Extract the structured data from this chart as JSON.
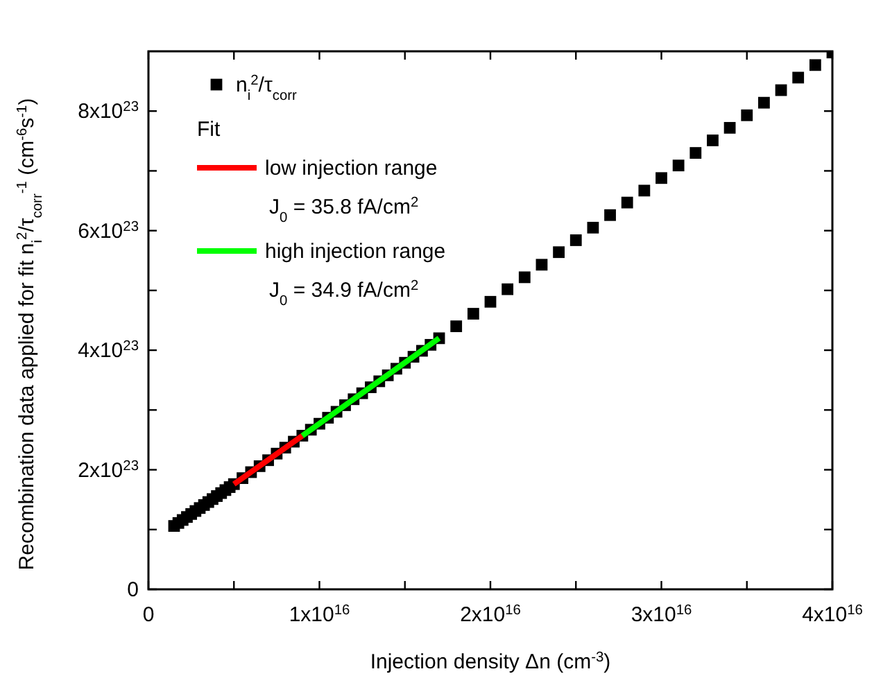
{
  "chart_data": {
    "type": "scatter",
    "xlabel": "Injection density Δn (cm$^{-3}$)",
    "ylabel": "Recombination data applied for fit n$_{i}$$^{2}$/τ$_{corr}$$^{-1}$ (cm$^{-6}$s$^{-1}$)",
    "xlim": [
      0,
      4e+16
    ],
    "ylim": [
      0,
      9e+23
    ],
    "xticks": [
      0,
      {
        "value": 5000000000000000.0,
        "label": null
      },
      {
        "value": 1e+16,
        "label": "1x10$^{16}$"
      },
      {
        "value": 1.5e+16,
        "label": null
      },
      {
        "value": 2e+16,
        "label": "2x10$^{16}$"
      },
      {
        "value": 2.5e+16,
        "label": null
      },
      {
        "value": 3e+16,
        "label": "3x10$^{16}$"
      },
      {
        "value": 3.5e+16,
        "label": null
      },
      {
        "value": 4e+16,
        "label": "4x10$^{16}$"
      }
    ],
    "yticks": [
      0,
      {
        "value": 1e+23,
        "label": null
      },
      {
        "value": 2e+23,
        "label": "2x10$^{23}$"
      },
      {
        "value": 3e+23,
        "label": null
      },
      {
        "value": 4e+23,
        "label": "4x10$^{23}$"
      },
      {
        "value": 5e+23,
        "label": null
      },
      {
        "value": 6e+23,
        "label": "6x10$^{23}$"
      },
      {
        "value": 7e+23,
        "label": null
      },
      {
        "value": 8e+23,
        "label": "8x10$^{23}$"
      }
    ],
    "grid": false,
    "legend": "top left",
    "legend_title": "Fit",
    "marker": "square",
    "annotations": [
      "J$_{0}$ = 35.8 fA/cm$^{2}$",
      "J$_{0}$ = 34.9 fA/cm$^{2}$"
    ],
    "series": [
      {
        "name": "n$_{i}$$^{2}$/τ$_{corr}$",
        "color": "#000000",
        "x": [
          1500000000000000.0,
          1750000000000000.0,
          2000000000000000.0,
          2250000000000000.0,
          2500000000000000.0,
          2750000000000000.0,
          3000000000000000.0,
          3250000000000000.0,
          3500000000000000.0,
          3750000000000000.0,
          4000000000000000.0,
          4250000000000000.0,
          4500000000000000.0,
          4750000000000000.0,
          5000000000000000.0,
          5500000000000000.0,
          6000000000000000.0,
          6500000000000000.0,
          7000000000000000.0,
          7500000000000000.0,
          8000000000000000.0,
          8500000000000000.0,
          9000000000000000.0,
          9500000000000000.0,
          1e+16,
          1.05e+16,
          1.1e+16,
          1.15e+16,
          1.2e+16,
          1.25e+16,
          1.3e+16,
          1.35e+16,
          1.4e+16,
          1.45e+16,
          1.5e+16,
          1.55e+16,
          1.6e+16,
          1.65e+16,
          1.7e+16,
          1.8e+16,
          1.9e+16,
          2e+16,
          2.1e+16,
          2.2e+16,
          2.3e+16,
          2.4e+16,
          2.5e+16,
          2.6e+16,
          2.7e+16,
          2.8e+16,
          2.9e+16,
          3e+16,
          3.1e+16,
          3.2e+16,
          3.3e+16,
          3.4e+16,
          3.5e+16,
          3.6e+16,
          3.7e+16,
          3.8e+16,
          3.9e+16,
          4e+16
        ],
        "values": [
          1.06e+23,
          1.11e+23,
          1.16e+23,
          1.21e+23,
          1.26e+23,
          1.31e+23,
          1.36e+23,
          1.41e+23,
          1.46e+23,
          1.51e+23,
          1.56e+23,
          1.61e+23,
          1.66e+23,
          1.71e+23,
          1.76e+23,
          1.86e+23,
          1.96e+23,
          2.06e+23,
          2.16e+23,
          2.27e+23,
          2.37e+23,
          2.47e+23,
          2.57e+23,
          2.67e+23,
          2.77e+23,
          2.87e+23,
          2.97e+23,
          3.08e+23,
          3.18e+23,
          3.28e+23,
          3.38e+23,
          3.48e+23,
          3.58e+23,
          3.69e+23,
          3.79e+23,
          3.89e+23,
          3.99e+23,
          4.09e+23,
          4.2e+23,
          4.4e+23,
          4.61e+23,
          4.81e+23,
          5.02e+23,
          5.22e+23,
          5.43e+23,
          5.64e+23,
          5.84e+23,
          6.05e+23,
          6.26e+23,
          6.47e+23,
          6.67e+23,
          6.88e+23,
          7.09e+23,
          7.3e+23,
          7.51e+23,
          7.72e+23,
          7.93e+23,
          8.14e+23,
          8.35e+23,
          8.56e+23,
          8.77e+23,
          8.98e+23
        ]
      },
      {
        "name": "low injection range",
        "type": "line",
        "color": "#ff0000",
        "line_style": "solid",
        "marker": "none",
        "x": [
          5000000000000000.0,
          9000000000000000.0
        ],
        "values": [
          1.76e+23,
          2.57e+23
        ]
      },
      {
        "name": "high injection range",
        "type": "line",
        "color": "#00ff00",
        "line_style": "solid",
        "marker": "none",
        "x": [
          9000000000000000.0,
          1.7e+16
        ],
        "values": [
          2.57e+23,
          4.2e+23
        ]
      }
    ]
  }
}
